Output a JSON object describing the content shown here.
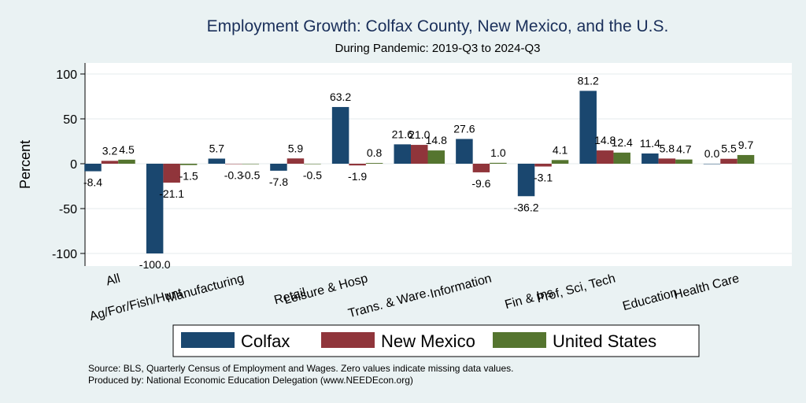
{
  "chart_data": {
    "type": "bar",
    "title": "Employment Growth: Colfax County, New Mexico, and the U.S.",
    "subtitle": "During Pandemic: 2019-Q3 to 2024-Q3",
    "ylabel": "Percent",
    "xlabel": "",
    "ylim": [
      -115,
      110
    ],
    "yticks": [
      -100,
      -50,
      0,
      50,
      100
    ],
    "categories": [
      "All",
      "Ag/For/Fish/Hunt",
      "Manufacturing",
      "Retail",
      "Leisure & Hosp",
      "Trans. & Ware.",
      "Information",
      "Fin & Ins",
      "Prof, Sci, Tech",
      "Education",
      "Health Care"
    ],
    "series": [
      {
        "name": "Colfax",
        "color": "#1a476f",
        "values": [
          -8.4,
          -100.0,
          5.7,
          -7.8,
          63.2,
          21.6,
          27.6,
          -36.2,
          81.2,
          11.4,
          0.0
        ]
      },
      {
        "name": "New Mexico",
        "color": "#90353b",
        "values": [
          3.2,
          -21.1,
          -0.3,
          5.9,
          -1.9,
          21.0,
          -9.6,
          -3.1,
          14.8,
          5.8,
          5.5
        ]
      },
      {
        "name": "United States",
        "color": "#55752f",
        "values": [
          4.5,
          -1.5,
          -0.5,
          -0.5,
          0.8,
          14.8,
          1.0,
          4.1,
          12.4,
          4.7,
          9.7
        ]
      }
    ],
    "legend": [
      "Colfax",
      "New Mexico",
      "United States"
    ],
    "legend_position": "bottom",
    "grid": true
  },
  "notes": {
    "source": "Source: BLS, Quarterly Census of Employment and Wages. Zero values indicate missing data values.",
    "produced": "Produced by: National Economic Education Delegation (www.NEEDEcon.org)"
  }
}
